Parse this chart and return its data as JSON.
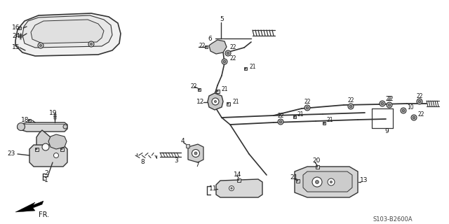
{
  "bg_color": "#ffffff",
  "line_color": "#333333",
  "text_color": "#111111",
  "diagram_code": "S103-B2600A",
  "fr_label": "FR.",
  "fig_width": 6.4,
  "fig_height": 3.2,
  "dpi": 100
}
